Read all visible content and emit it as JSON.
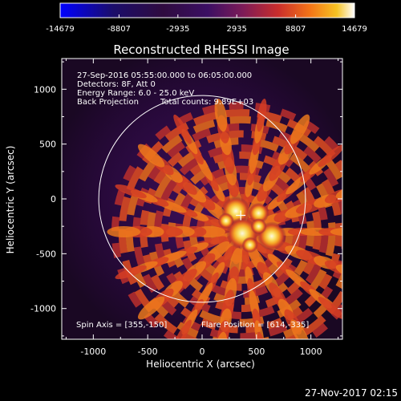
{
  "colorbar": {
    "tick_labels": [
      "-14679",
      "-8807",
      "-2935",
      "2935",
      "8807",
      "14679"
    ],
    "min": -14679,
    "max": 14679
  },
  "image": {
    "title": "Reconstructed RHESSI Image",
    "info_lines": [
      "27-Sep-2016 05:55:00.000 to 06:05:00.000",
      "Detectors: 8F, Att 0",
      "Energy Range: 6.0 - 25.0 keV",
      "Back Projection"
    ],
    "total_counts": "Total counts: 9.89E+03",
    "spin_axis": "Spin Axis = [355,-150]",
    "flare_position": "Flare Position = [614,-335]",
    "xlabel": "Heliocentric X (arcsec)",
    "ylabel": "Heliocentric Y (arcsec)",
    "xticks": [
      "-1000",
      "-500",
      "0",
      "500",
      "1000"
    ],
    "yticks": [
      "1000",
      "500",
      "0",
      "-500",
      "-1000"
    ],
    "footer_timestamp": "27-Nov-2017 02:15"
  },
  "plot_ranges": {
    "x": [
      -1290,
      1290
    ],
    "y": [
      -1280,
      1280
    ],
    "solar_disk_radius": 950,
    "crosshair": [
      355,
      -150
    ],
    "source_center": [
      360,
      -300
    ]
  },
  "colors": {
    "background": "#000000",
    "disk_circle": "#ffffff",
    "frame": "#ffffff",
    "colormap": [
      "#0000ff",
      "#2a1a8a",
      "#3a0c57",
      "#4d0f63",
      "#7d1a54",
      "#b32238",
      "#df3b1a",
      "#f77711",
      "#f6c323",
      "#ffffff"
    ]
  }
}
